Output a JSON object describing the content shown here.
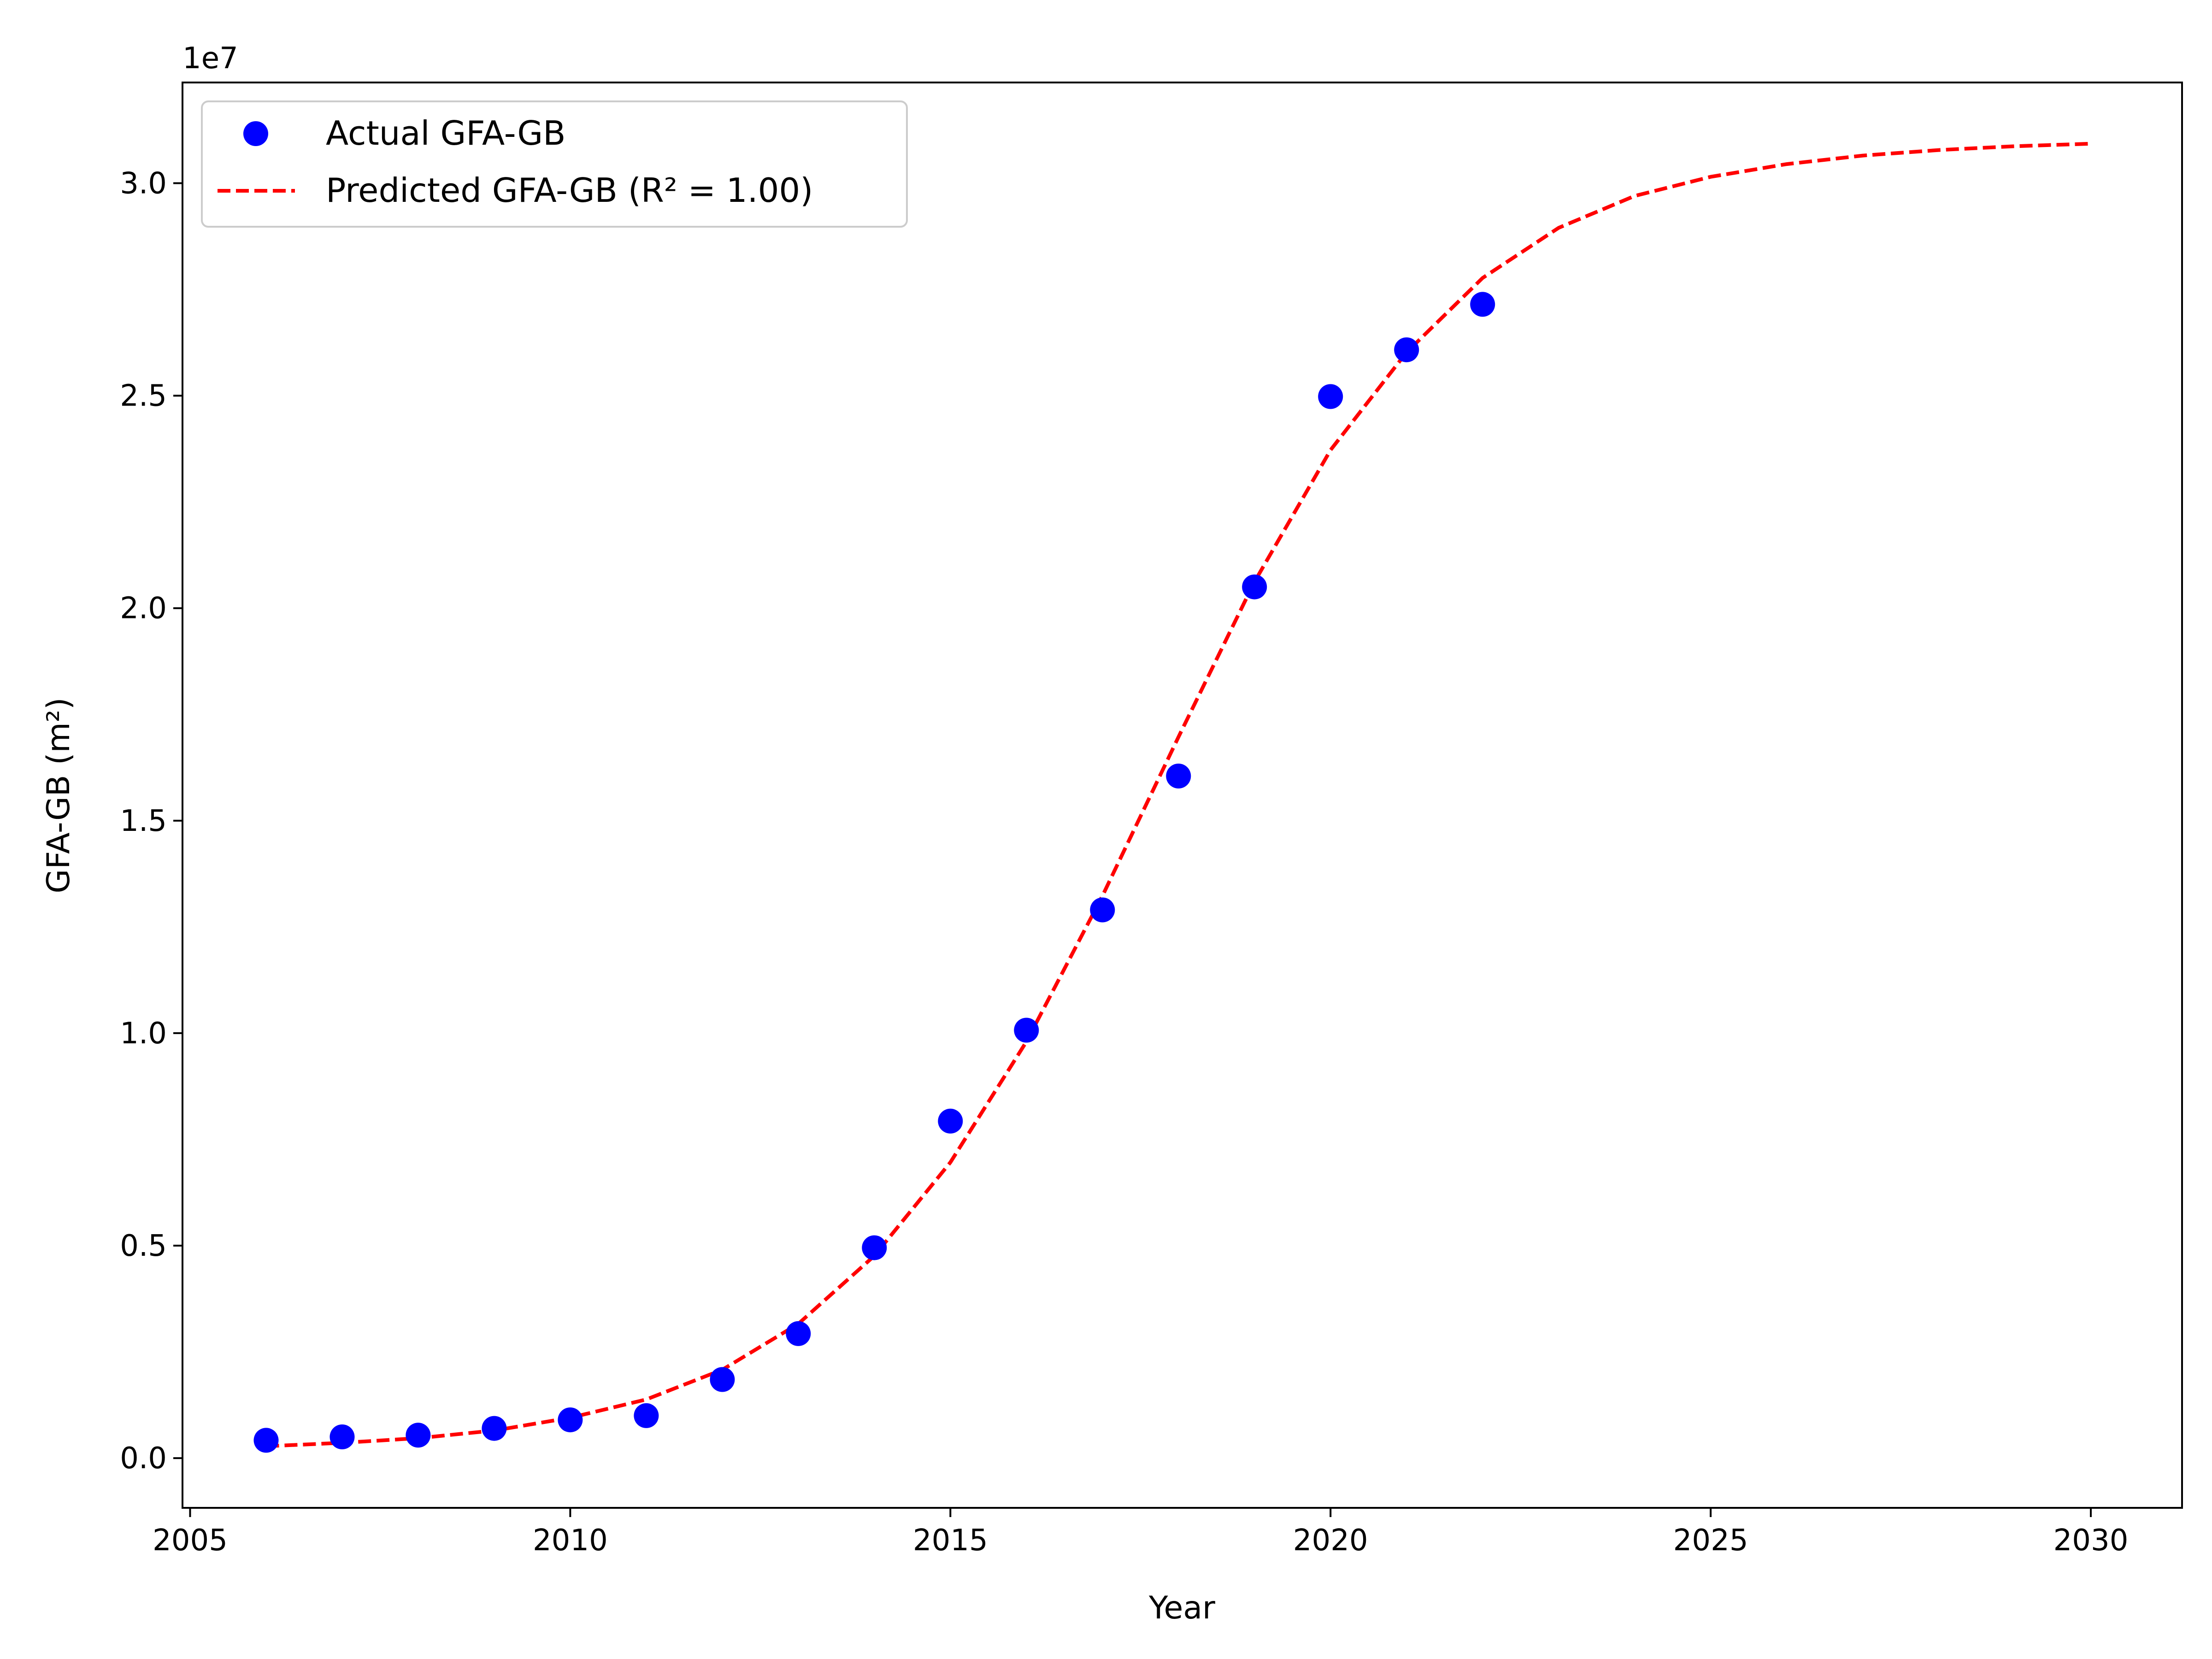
{
  "chart_data": {
    "type": "scatter",
    "title": "",
    "xlabel": "Year",
    "ylabel": "GFA-GB (m²)",
    "y_offset_label": "1e7",
    "xlim": [
      2004.9,
      2031.2
    ],
    "ylim": [
      -1170000,
      32370000
    ],
    "x_ticks": [
      2005,
      2010,
      2015,
      2020,
      2025,
      2030
    ],
    "y_ticks": [
      0,
      5000000,
      10000000,
      15000000,
      20000000,
      25000000,
      30000000
    ],
    "y_tick_labels": [
      "0.0",
      "0.5",
      "1.0",
      "1.5",
      "2.0",
      "2.5",
      "3.0"
    ],
    "grid": false,
    "legend_position": "upper-left",
    "series": [
      {
        "name": "Actual GFA-GB",
        "kind": "scatter",
        "color": "#0000ff",
        "x": [
          2006,
          2007,
          2008,
          2009,
          2010,
          2011,
          2012,
          2013,
          2014,
          2015,
          2016,
          2017,
          2018,
          2019,
          2020,
          2021,
          2022
        ],
        "y": [
          420000,
          500000,
          540000,
          700000,
          900000,
          1000000,
          1850000,
          2930000,
          4950000,
          7930000,
          10070000,
          12900000,
          16050000,
          20500000,
          24980000,
          26080000,
          27150000
        ]
      },
      {
        "name": "Predicted GFA-GB (R² = 1.00)",
        "kind": "line",
        "style": "dashed",
        "color": "#ff0000",
        "x": [
          2006,
          2007,
          2008,
          2009,
          2010,
          2011,
          2012,
          2013,
          2014,
          2015,
          2016,
          2017,
          2018,
          2019,
          2020,
          2021,
          2022,
          2023,
          2024,
          2025,
          2026,
          2027,
          2028,
          2029,
          2030
        ],
        "y": [
          280000,
          360000,
          470000,
          650000,
          950000,
          1380000,
          2080000,
          3160000,
          4760000,
          6960000,
          9800000,
          13230000,
          16970000,
          20620000,
          23720000,
          26020000,
          27770000,
          28950000,
          29700000,
          30150000,
          30450000,
          30650000,
          30780000,
          30870000,
          30930000
        ]
      }
    ]
  }
}
